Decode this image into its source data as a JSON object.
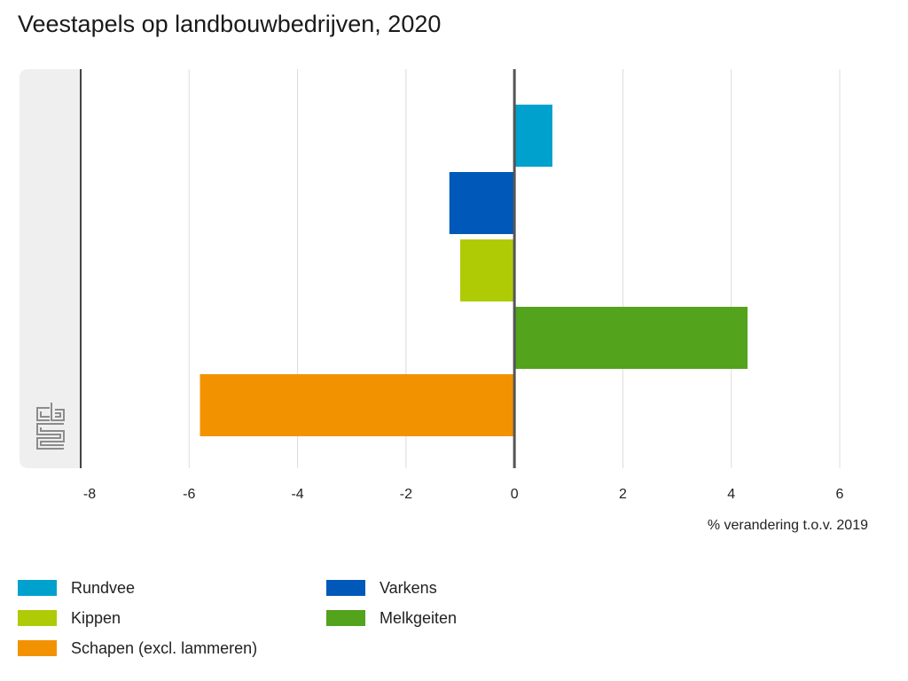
{
  "title": "Veestapels op landbouwbedrijven, 2020",
  "chart_data": {
    "type": "bar",
    "orientation": "horizontal",
    "title": "Veestapels op landbouwbedrijven, 2020",
    "xlabel": "% verandering t.o.v. 2019",
    "ylabel": "",
    "xlim": [
      -8,
      6
    ],
    "xticks": [
      -8,
      -6,
      -4,
      -2,
      0,
      2,
      4,
      6
    ],
    "grid": true,
    "legend_position": "bottom",
    "series": [
      {
        "name": "Rundvee",
        "value": 0.7,
        "color": "#00a1cd"
      },
      {
        "name": "Varkens",
        "value": -1.2,
        "color": "#0058b8"
      },
      {
        "name": "Kippen",
        "value": -1.0,
        "color": "#afcb05"
      },
      {
        "name": "Melkgeiten",
        "value": 4.3,
        "color": "#53a31d"
      },
      {
        "name": "Schapen (excl. lammeren)",
        "value": -5.8,
        "color": "#f39200"
      }
    ]
  },
  "legend": [
    {
      "label": "Rundvee",
      "color": "#00a1cd"
    },
    {
      "label": "Varkens",
      "color": "#0058b8"
    },
    {
      "label": "Kippen",
      "color": "#afcb05"
    },
    {
      "label": "Melkgeiten",
      "color": "#53a31d"
    },
    {
      "label": "Schapen (excl. lammeren)",
      "color": "#f39200"
    }
  ],
  "logo": "cbs"
}
